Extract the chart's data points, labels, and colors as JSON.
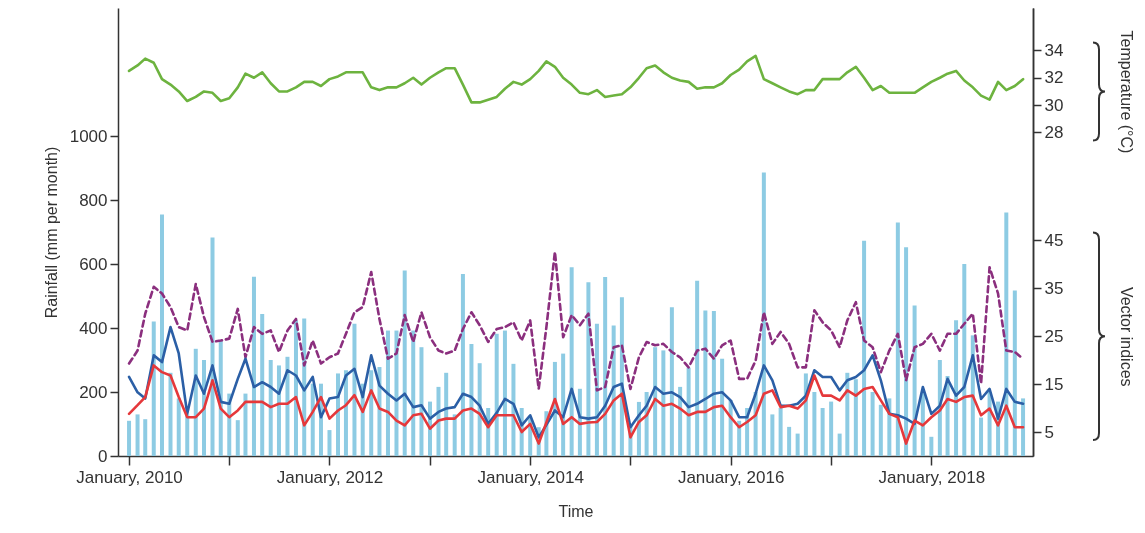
{
  "chart_data": {
    "type": "bar",
    "xlabel": "Time",
    "ylabel": "Rainfall (mm per month)",
    "y2label": "Temperature (°C)",
    "y3label": "Vector indices",
    "x": [
      "2010-01",
      "2010-02",
      "2010-03",
      "2010-04",
      "2010-05",
      "2010-06",
      "2010-07",
      "2010-08",
      "2010-09",
      "2010-10",
      "2010-11",
      "2010-12",
      "2011-01",
      "2011-02",
      "2011-03",
      "2011-04",
      "2011-05",
      "2011-06",
      "2011-07",
      "2011-08",
      "2011-09",
      "2011-10",
      "2011-11",
      "2011-12",
      "2012-01",
      "2012-02",
      "2012-03",
      "2012-04",
      "2012-05",
      "2012-06",
      "2012-07",
      "2012-08",
      "2012-09",
      "2012-10",
      "2012-11",
      "2012-12",
      "2013-01",
      "2013-02",
      "2013-03",
      "2013-04",
      "2013-05",
      "2013-06",
      "2013-07",
      "2013-08",
      "2013-09",
      "2013-10",
      "2013-11",
      "2013-12",
      "2014-01",
      "2014-02",
      "2014-03",
      "2014-04",
      "2014-05",
      "2014-06",
      "2014-07",
      "2014-08",
      "2014-09",
      "2014-10",
      "2014-11",
      "2014-12",
      "2015-01",
      "2015-02",
      "2015-03",
      "2015-04",
      "2015-05",
      "2015-06",
      "2015-07",
      "2015-08",
      "2015-09",
      "2015-10",
      "2015-11",
      "2015-12",
      "2016-01",
      "2016-02",
      "2016-03",
      "2016-04",
      "2016-05",
      "2016-06",
      "2016-07",
      "2016-08",
      "2016-09",
      "2016-10",
      "2016-11",
      "2016-12",
      "2017-01",
      "2017-02",
      "2017-03",
      "2017-04",
      "2017-05",
      "2017-06",
      "2017-07",
      "2017-08",
      "2017-09",
      "2017-10",
      "2017-11",
      "2017-12",
      "2018-01",
      "2018-02",
      "2018-03",
      "2018-04",
      "2018-05",
      "2018-06",
      "2018-07",
      "2018-08",
      "2018-09",
      "2018-10",
      "2018-11",
      "2018-12"
    ],
    "xlim": [
      "2009-12-10",
      "2018-12-19"
    ],
    "xticks": [
      {
        "value": "2010-01",
        "label": "January, 2010"
      },
      {
        "value": "2011-01",
        "label": null
      },
      {
        "value": "2012-01",
        "label": "January, 2012"
      },
      {
        "value": "2013-01",
        "label": null
      },
      {
        "value": "2014-01",
        "label": "January, 2014"
      },
      {
        "value": "2015-01",
        "label": null
      },
      {
        "value": "2016-01",
        "label": "January, 2016"
      },
      {
        "value": "2017-01",
        "label": null
      },
      {
        "value": "2018-01",
        "label": "January, 2018"
      }
    ],
    "ylim": [
      0,
      1400
    ],
    "yticks": [
      0,
      200,
      400,
      600,
      800,
      1000
    ],
    "y2lim": [
      4.35,
      37.1
    ],
    "y2ticks": [
      28,
      30,
      32,
      34
    ],
    "y3lim": [
      0,
      93.5
    ],
    "y3ticks": [
      5,
      15,
      25,
      35,
      45
    ],
    "series": [
      {
        "axis": "y",
        "color": "#8dcbe3",
        "values": [
          110,
          130,
          115,
          420,
          755,
          260,
          180,
          130,
          335,
          300,
          683,
          360,
          195,
          112,
          195,
          560,
          444,
          300,
          283,
          310,
          424,
          430,
          226,
          226,
          81,
          258,
          268,
          413,
          226,
          268,
          278,
          392,
          392,
          580,
          392,
          340,
          170,
          216,
          260,
          130,
          569,
          350,
          290,
          150,
          382,
          392,
          288,
          150,
          120,
          90,
          140,
          294,
          320,
          590,
          210,
          543,
          413,
          559,
          408,
          496,
          100,
          169,
          200,
          340,
          330,
          465,
          216,
          276,
          548,
          455,
          453,
          304,
          175,
          110,
          150,
          200,
          886,
          130,
          150,
          91,
          70,
          258,
          200,
          150,
          170,
          70,
          260,
          240,
          673,
          200,
          160,
          180,
          730,
          652,
          470,
          200,
          60,
          300,
          250,
          424,
          600,
          377,
          120,
          200,
          170,
          761,
          517,
          180
        ]
      },
      {
        "type": "line",
        "axis": "y2",
        "color": "#6db33f",
        "values": [
          32.5,
          32.9,
          33.4,
          33.1,
          31.9,
          31.5,
          31.0,
          30.3,
          30.6,
          31.0,
          30.9,
          30.3,
          30.5,
          31.3,
          32.3,
          32.0,
          32.4,
          31.6,
          31.0,
          31.0,
          31.3,
          31.7,
          31.7,
          31.4,
          31.9,
          32.1,
          32.4,
          32.4,
          32.4,
          31.3,
          31.1,
          31.3,
          31.3,
          31.6,
          32.0,
          31.5,
          32.0,
          32.4,
          32.7,
          32.7,
          31.5,
          30.2,
          30.2,
          30.4,
          30.6,
          31.2,
          31.7,
          31.5,
          31.9,
          32.5,
          33.2,
          32.8,
          32.0,
          31.5,
          30.9,
          30.8,
          31.1,
          30.6,
          30.7,
          30.8,
          31.3,
          32.0,
          32.7,
          32.9,
          32.4,
          32.0,
          31.8,
          31.7,
          31.2,
          31.3,
          31.3,
          31.6,
          32.2,
          32.6,
          33.2,
          33.6,
          31.9,
          31.6,
          31.3,
          31.0,
          30.8,
          31.1,
          31.1,
          31.9,
          31.9,
          31.9,
          32.4,
          32.8,
          32.0,
          31.1,
          31.4,
          30.9,
          30.9,
          30.9,
          30.9,
          31.3,
          31.7,
          32.0,
          32.3,
          32.5,
          31.8,
          31.3,
          30.7,
          30.4,
          31.7,
          31.1,
          31.4,
          31.9
        ]
      },
      {
        "type": "line",
        "axis": "y3",
        "color": "#8b2f7e",
        "line_style": "dashed",
        "values": [
          19.3,
          22.0,
          29.7,
          35.3,
          33.9,
          31.1,
          26.9,
          26.2,
          35.9,
          29.0,
          23.8,
          24.1,
          24.5,
          30.7,
          20.6,
          26.9,
          25.5,
          26.2,
          21.7,
          26.2,
          28.6,
          18.9,
          24.1,
          19.3,
          20.6,
          21.4,
          25.5,
          30.0,
          31.1,
          38.4,
          28.6,
          20.3,
          21.4,
          29.4,
          23.8,
          30.0,
          24.8,
          22.0,
          21.4,
          22.0,
          26.5,
          30.0,
          27.3,
          23.8,
          26.5,
          26.9,
          27.9,
          24.1,
          28.3,
          14.0,
          26.9,
          42.6,
          24.8,
          29.4,
          27.3,
          29.7,
          13.7,
          14.4,
          22.7,
          23.1,
          14.0,
          20.6,
          23.8,
          23.1,
          23.4,
          21.7,
          20.6,
          18.5,
          22.0,
          22.4,
          20.3,
          23.1,
          24.1,
          16.1,
          16.1,
          19.9,
          30.0,
          23.4,
          25.9,
          23.4,
          18.5,
          18.5,
          30.4,
          27.9,
          26.2,
          22.7,
          28.3,
          32.1,
          24.1,
          22.7,
          17.5,
          22.0,
          25.5,
          15.8,
          22.7,
          23.4,
          25.5,
          22.0,
          25.5,
          25.5,
          27.6,
          29.7,
          15.1,
          39.4,
          33.9,
          22.0,
          21.7,
          20.3
        ]
      },
      {
        "type": "line",
        "axis": "y3",
        "color": "#2b5fa6",
        "values": [
          16.5,
          13.3,
          12.0,
          21.0,
          19.6,
          26.9,
          21.4,
          8.8,
          16.8,
          13.0,
          18.9,
          11.3,
          10.9,
          16.1,
          20.3,
          14.4,
          15.4,
          14.4,
          13.0,
          17.9,
          16.8,
          13.7,
          16.5,
          8.1,
          12.0,
          12.3,
          16.8,
          18.2,
          12.3,
          21.0,
          14.7,
          13.0,
          11.6,
          13.0,
          10.2,
          10.6,
          7.8,
          9.2,
          9.9,
          10.2,
          13.0,
          12.3,
          10.5,
          6.7,
          9.0,
          11.9,
          10.9,
          6.4,
          8.5,
          3.9,
          6.5,
          9.5,
          8.1,
          14.0,
          8.1,
          7.8,
          8.1,
          10.5,
          14.4,
          15.1,
          6.0,
          8.5,
          10.5,
          14.4,
          13.0,
          13.3,
          12.3,
          10.2,
          10.9,
          11.9,
          13.0,
          13.3,
          11.6,
          8.1,
          8.1,
          13.0,
          18.9,
          15.8,
          10.5,
          10.5,
          10.9,
          12.6,
          17.9,
          16.5,
          16.5,
          13.7,
          15.8,
          16.5,
          17.9,
          21.0,
          15.8,
          8.8,
          8.5,
          7.8,
          6.7,
          14.4,
          8.8,
          10.5,
          16.1,
          12.6,
          14.4,
          21.0,
          11.9,
          14.0,
          7.8,
          14.0,
          11.3,
          10.9
        ]
      },
      {
        "type": "line",
        "axis": "y3",
        "color": "#e5383b",
        "values": [
          8.8,
          10.6,
          12.3,
          18.9,
          17.5,
          16.8,
          12.3,
          8.1,
          8.1,
          9.9,
          15.8,
          9.9,
          8.1,
          9.5,
          11.3,
          11.3,
          11.3,
          10.2,
          10.9,
          10.9,
          12.3,
          6.4,
          9.2,
          12.3,
          7.8,
          9.5,
          10.6,
          12.7,
          9.2,
          13.7,
          9.9,
          9.2,
          7.4,
          6.4,
          8.5,
          8.8,
          5.7,
          7.4,
          7.8,
          7.8,
          9.5,
          9.9,
          8.8,
          6.0,
          8.5,
          8.5,
          8.5,
          5.0,
          6.7,
          2.6,
          7.0,
          11.9,
          6.7,
          8.1,
          6.7,
          7.0,
          7.1,
          8.8,
          11.6,
          13.0,
          3.9,
          7.1,
          8.5,
          11.9,
          10.5,
          10.9,
          9.9,
          8.5,
          9.2,
          9.2,
          10.2,
          10.5,
          8.1,
          6.0,
          7.1,
          8.5,
          13.0,
          13.7,
          10.2,
          10.5,
          9.9,
          11.6,
          16.8,
          12.6,
          12.6,
          11.6,
          13.7,
          12.6,
          14.0,
          14.4,
          11.6,
          8.8,
          8.1,
          2.6,
          7.4,
          6.4,
          8.1,
          9.5,
          11.9,
          11.3,
          12.3,
          12.6,
          8.5,
          9.9,
          6.4,
          10.5,
          6.0,
          6.0
        ]
      }
    ]
  }
}
